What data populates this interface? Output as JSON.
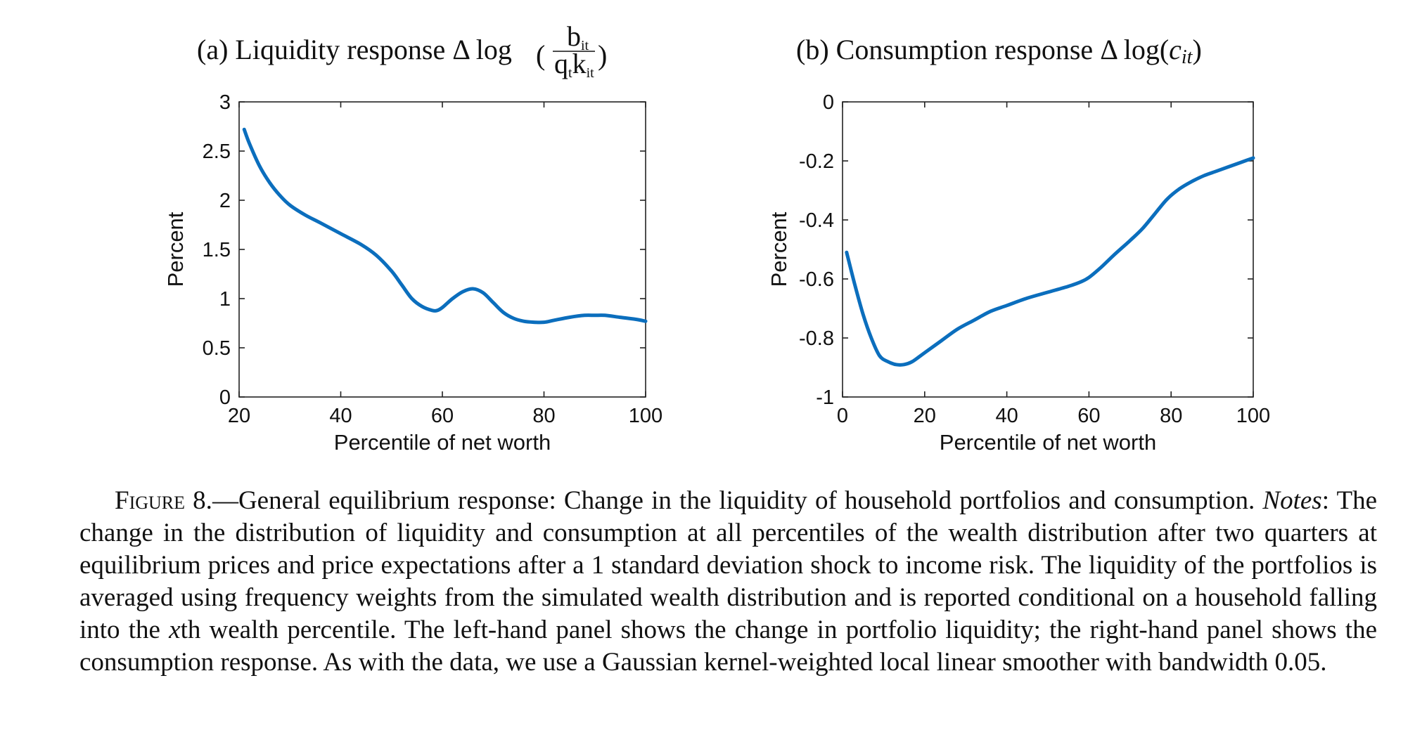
{
  "panels": [
    {
      "title_prefix": "(a) Liquidity response Δ log",
      "title_frac_num": "b",
      "title_frac_num_sub": "it",
      "title_frac_den_q": "q",
      "title_frac_den_q_sub": "t",
      "title_frac_den_k": "k",
      "title_frac_den_k_sub": "it"
    },
    {
      "title_prefix": "(b) Consumption response Δ log(",
      "title_var": "c",
      "title_var_sub": "it",
      "title_suffix": ")"
    }
  ],
  "chart_data": [
    {
      "type": "line",
      "title": "(a) Liquidity response Δ log(b_it / q_t k_it)",
      "xlabel": "Percentile of net worth",
      "ylabel": "Percent",
      "xlim": [
        20,
        100
      ],
      "ylim": [
        0,
        3
      ],
      "xticks": [
        20,
        40,
        60,
        80,
        100
      ],
      "yticks": [
        0,
        0.5,
        1,
        1.5,
        2,
        2.5,
        3
      ],
      "xtick_labels": [
        "20",
        "40",
        "60",
        "80",
        "100"
      ],
      "ytick_labels": [
        "0",
        "0.5",
        "1",
        "1.5",
        "2",
        "2.5",
        "3"
      ],
      "line_color": "#0b6ebd",
      "grid": false,
      "series": [
        {
          "x": [
            21,
            22,
            24,
            26,
            28,
            30,
            33,
            36,
            40,
            44,
            47,
            50,
            52,
            54,
            56,
            58,
            59,
            60,
            62,
            64,
            66,
            68,
            70,
            72,
            74,
            76,
            78,
            80,
            82,
            85,
            88,
            90,
            92,
            95,
            98,
            100
          ],
          "y": [
            2.72,
            2.58,
            2.35,
            2.18,
            2.05,
            1.95,
            1.85,
            1.77,
            1.66,
            1.55,
            1.44,
            1.28,
            1.14,
            1.0,
            0.92,
            0.88,
            0.88,
            0.91,
            1.0,
            1.07,
            1.1,
            1.06,
            0.96,
            0.86,
            0.8,
            0.77,
            0.76,
            0.76,
            0.78,
            0.81,
            0.83,
            0.83,
            0.83,
            0.81,
            0.79,
            0.77
          ]
        }
      ]
    },
    {
      "type": "line",
      "title": "(b) Consumption response Δ log(c_it)",
      "xlabel": "Percentile of net worth",
      "ylabel": "Percent",
      "xlim": [
        0,
        100
      ],
      "ylim": [
        -1,
        0
      ],
      "xticks": [
        0,
        20,
        40,
        60,
        80,
        100
      ],
      "yticks": [
        -1,
        -0.8,
        -0.6,
        -0.4,
        -0.2,
        0
      ],
      "xtick_labels": [
        "0",
        "20",
        "40",
        "60",
        "80",
        "100"
      ],
      "ytick_labels": [
        "-1",
        "-0.8",
        "-0.6",
        "-0.4",
        "-0.2",
        "0"
      ],
      "line_color": "#0b6ebd",
      "grid": false,
      "series": [
        {
          "x": [
            1,
            3,
            5,
            7,
            9,
            11,
            13,
            15,
            17,
            20,
            24,
            28,
            32,
            36,
            40,
            45,
            50,
            55,
            58,
            60,
            63,
            66,
            70,
            73,
            76,
            79,
            82,
            85,
            88,
            91,
            94,
            97,
            100
          ],
          "y": [
            -0.51,
            -0.62,
            -0.72,
            -0.8,
            -0.86,
            -0.88,
            -0.89,
            -0.89,
            -0.88,
            -0.85,
            -0.81,
            -0.77,
            -0.74,
            -0.71,
            -0.69,
            -0.665,
            -0.645,
            -0.625,
            -0.61,
            -0.595,
            -0.56,
            -0.52,
            -0.47,
            -0.43,
            -0.38,
            -0.33,
            -0.295,
            -0.27,
            -0.25,
            -0.235,
            -0.22,
            -0.205,
            -0.19
          ]
        }
      ]
    }
  ],
  "caption": {
    "figure_label": "Figure 8.",
    "text_1": "—General equilibrium response: Change in the liquidity of household portfolios and consumption. ",
    "notes_label": "Notes",
    "text_2": ": The change in the distribution of liquidity and consumption at all percentiles of the wealth distribution after two quarters at equilibrium prices and price expectations after a 1 standard deviation shock to income risk. The liquidity of the portfolios is averaged using frequency weights from the simulated wealth distribution and is reported conditional on a household falling into the ",
    "var_x": "x",
    "text_3": "th wealth percentile. The left-hand panel shows the change in portfolio liquidity; the right-hand panel shows the consumption response. As with the data, we use a Gaussian kernel-weighted local linear smoother with bandwidth 0.05."
  }
}
